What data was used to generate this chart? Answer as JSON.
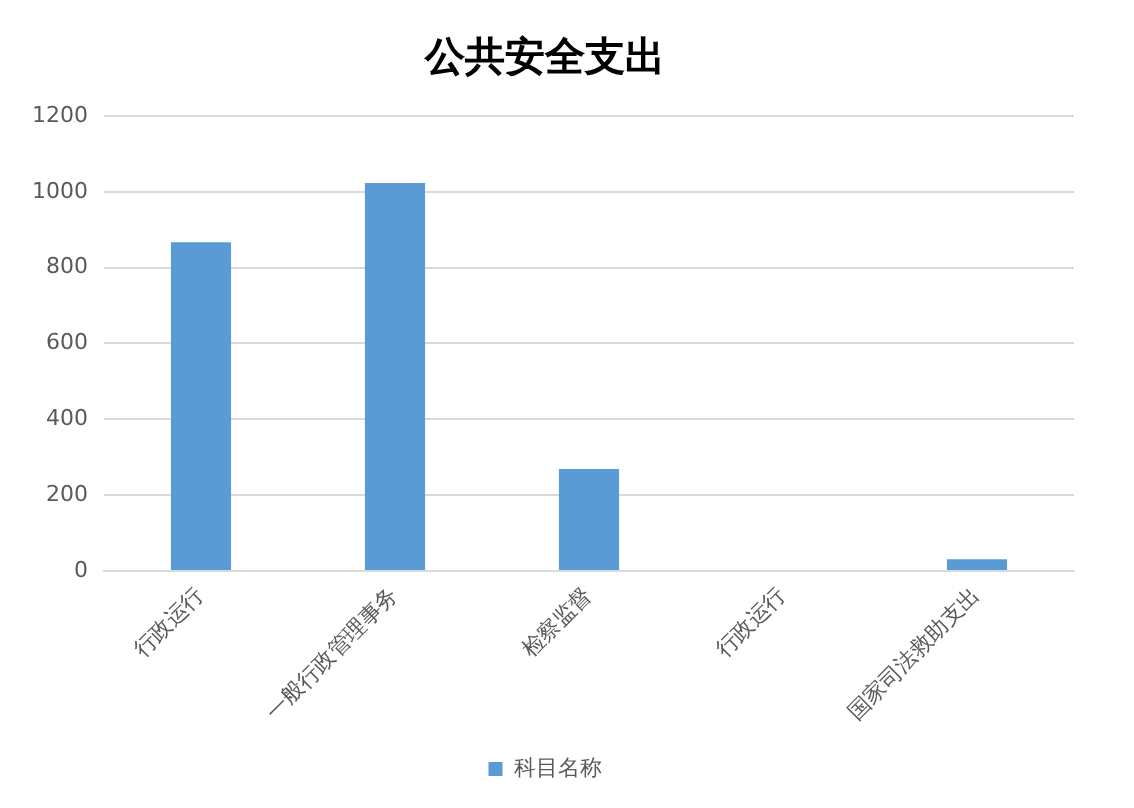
{
  "chart_data": {
    "type": "bar",
    "title": "公共安全支出",
    "categories": [
      "行政运行",
      "一般行政管理事务",
      "检察监督",
      "行政运行",
      "国家司法救助支出"
    ],
    "series": [
      {
        "name": "科目名称",
        "color": "#5b9bd5",
        "values": [
          867,
          1023,
          269,
          0,
          31
        ]
      }
    ],
    "ylim": [
      0,
      1200
    ],
    "yticks": [
      0,
      200,
      400,
      600,
      800,
      1000,
      1200
    ],
    "grid": "y",
    "legend": "bottom"
  }
}
